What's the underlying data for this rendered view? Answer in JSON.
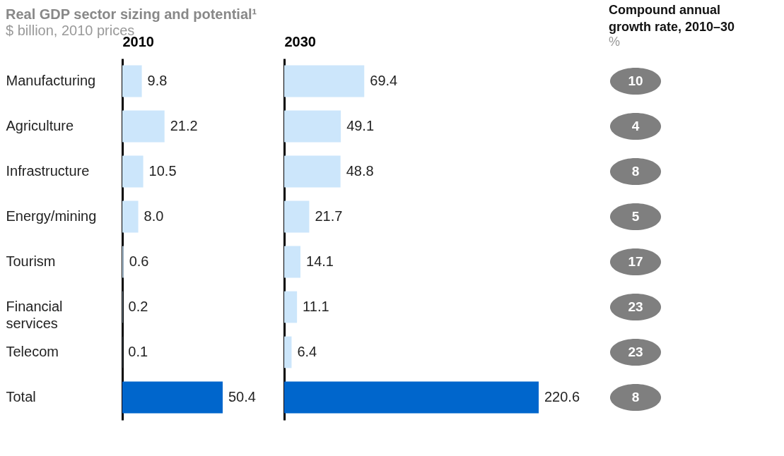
{
  "chart_data": [
    {
      "type": "bar",
      "orientation": "horizontal",
      "title": "Real GDP sector sizing and potential¹",
      "subtitle": "$ billion, 2010 prices",
      "xlabel": "2010",
      "categories": [
        "Manufacturing",
        "Agriculture",
        "Infrastructure",
        "Energy/mining",
        "Tourism",
        "Financial services",
        "Telecom",
        "Total"
      ],
      "values": [
        9.8,
        21.2,
        10.5,
        8.0,
        0.6,
        0.2,
        0.1,
        50.4
      ],
      "value_labels": [
        "9.8",
        "21.2",
        "10.5",
        "8.0",
        "0.6",
        "0.2",
        "0.1",
        "50.4"
      ],
      "colors": [
        "#cce6fb",
        "#cce6fb",
        "#cce6fb",
        "#cce6fb",
        "#cce6fb",
        "#cce6fb",
        "#cce6fb",
        "#0066cc"
      ],
      "tick_labels": "y"
    },
    {
      "type": "bar",
      "orientation": "horizontal",
      "xlabel": "2030",
      "values": [
        69.4,
        49.1,
        48.8,
        21.7,
        14.1,
        11.1,
        6.4,
        220.6
      ],
      "colors": [
        "#cce6fb",
        "#cce6fb",
        "#cce6fb",
        "#cce6fb",
        "#cce6fb",
        "#cce6fb",
        "#cce6fb",
        "#0066cc"
      ],
      "data_labels": true,
      "tick_labels": false
    },
    {
      "type": "other",
      "title": "Compound annual growth rate, 2010–30",
      "subtitle": "%",
      "values": [
        10,
        4,
        8,
        5,
        17,
        23,
        23,
        8
      ],
      "color": "#7f7f7f",
      "data_labels": true
    }
  ]
}
